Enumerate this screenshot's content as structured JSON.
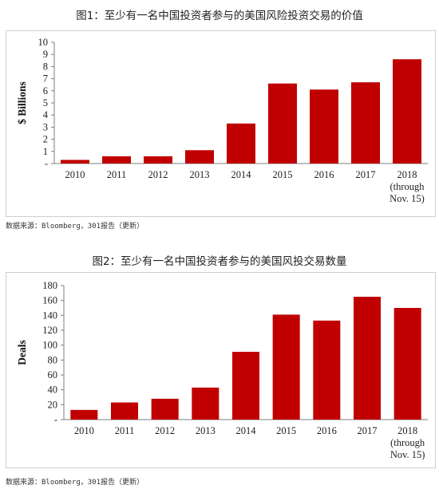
{
  "charts": [
    {
      "title": "图1：至少有一名中国投资者参与的美国风险投资交易的价值",
      "source": "数据来源：Bloomberg，301报告（更新）"
    },
    {
      "title": "图2：至少有一名中国投资者参与的美国风投交易数量",
      "source": "数据来源：Bloomberg，301报告（更新）"
    }
  ],
  "colors": {
    "bar": "#c00000",
    "axis": "#7f7f7f"
  },
  "chart_data": [
    {
      "type": "bar",
      "title": "图1：至少有一名中国投资者参与的美国风险投资交易的价值",
      "ylabel": "$ Billions",
      "xlabel": "",
      "ylim": [
        0,
        10
      ],
      "yticks": [
        0,
        1,
        2,
        3,
        4,
        5,
        6,
        7,
        8,
        9,
        10
      ],
      "ytick_labels": [
        "-",
        "1",
        "2",
        "3",
        "4",
        "5",
        "6",
        "7",
        "8",
        "9",
        "10"
      ],
      "categories": [
        "2010",
        "2011",
        "2012",
        "2013",
        "2014",
        "2015",
        "2016",
        "2017",
        "2018 (through Nov. 15)"
      ],
      "category_lines": [
        [
          "2010"
        ],
        [
          "2011"
        ],
        [
          "2012"
        ],
        [
          "2013"
        ],
        [
          "2014"
        ],
        [
          "2015"
        ],
        [
          "2016"
        ],
        [
          "2017"
        ],
        [
          "2018",
          "(through",
          "Nov. 15)"
        ]
      ],
      "values": [
        0.3,
        0.6,
        0.6,
        1.1,
        3.3,
        6.6,
        6.1,
        6.7,
        8.6
      ],
      "grid": false,
      "legend": "none"
    },
    {
      "type": "bar",
      "title": "图2：至少有一名中国投资者参与的美国风投交易数量",
      "ylabel": "Deals",
      "xlabel": "",
      "ylim": [
        0,
        180
      ],
      "yticks": [
        0,
        20,
        40,
        60,
        80,
        100,
        120,
        140,
        160,
        180
      ],
      "ytick_labels": [
        "-",
        "20",
        "40",
        "60",
        "80",
        "100",
        "120",
        "140",
        "160",
        "180"
      ],
      "categories": [
        "2010",
        "2011",
        "2012",
        "2013",
        "2014",
        "2015",
        "2016",
        "2017",
        "2018 (through Nov. 15)"
      ],
      "category_lines": [
        [
          "2010"
        ],
        [
          "2011"
        ],
        [
          "2012"
        ],
        [
          "2013"
        ],
        [
          "2014"
        ],
        [
          "2015"
        ],
        [
          "2016"
        ],
        [
          "2017"
        ],
        [
          "2018",
          "(through",
          "Nov. 15)"
        ]
      ],
      "values": [
        13,
        23,
        28,
        43,
        91,
        141,
        133,
        165,
        150
      ],
      "grid": false,
      "legend": "none"
    }
  ]
}
